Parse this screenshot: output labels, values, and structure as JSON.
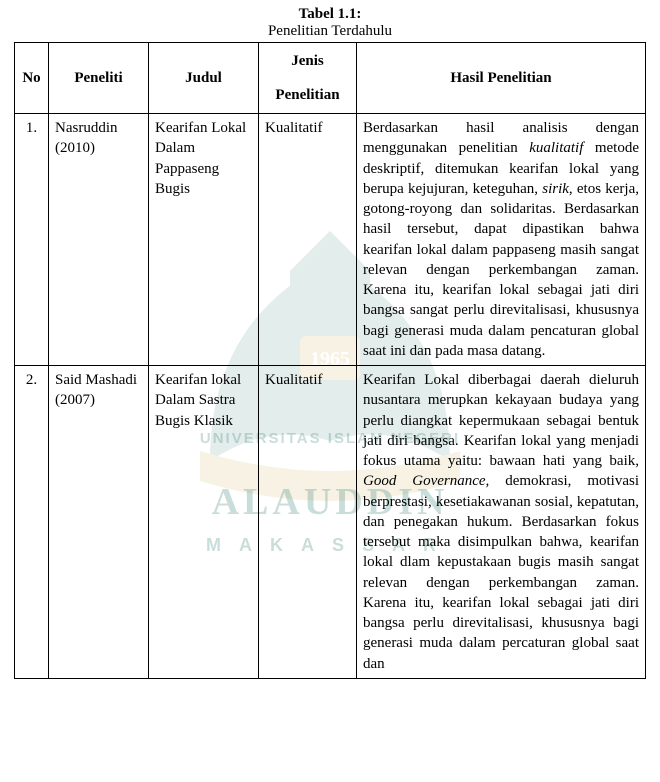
{
  "caption": {
    "title": "Tabel 1.1:",
    "subtitle": "Penelitian Terdahulu"
  },
  "headers": {
    "no": "No",
    "peneliti": "Peneliti",
    "judul": "Judul",
    "jenis_line1": "Jenis",
    "jenis_line2": "Penelitian",
    "hasil": "Hasil Penelitian"
  },
  "rows": [
    {
      "no": "1.",
      "peneliti": "Nasruddin (2010)",
      "judul": "Kearifan Lokal Dalam Pappaseng Bugis",
      "jenis": "Kualitatif",
      "hasil_html": "Berdasarkan hasil analisis dengan menggunakan penelitian <span class=\"it\">kualitatif</span> metode deskriptif, ditemukan kearifan lokal yang berupa kejujuran, keteguhan, <span class=\"it\">sirik</span>, etos kerja, gotong-royong dan solidaritas. Berdasarkan hasil tersebut, dapat dipastikan bahwa kearifan lokal dalam pappaseng masih sangat relevan dengan perkembangan zaman. Karena itu, kearifan lokal sebagai jati diri bangsa sangat perlu direvitalisasi, khususnya bagi generasi muda dalam pencaturan global saat ini dan pada masa datang."
    },
    {
      "no": "2.",
      "peneliti": "Said Mashadi (2007)",
      "judul": "Kearifan lokal Dalam Sastra Bugis Klasik",
      "jenis": "Kualitatif",
      "hasil_html": "Kearifan Lokal diberbagai daerah dieluruh nusantara merupkan kekayaan budaya yang perlu diangkat kepermukaan sebagai bentuk jati diri bangsa. Kearifan lokal yang menjadi fokus utama yaitu: bawaan hati yang baik, <span class=\"it\">Good Governance,</span> demokrasi, motivasi berprestasi, kesetiakawanan sosial, kepatutan, dan penegakan hukum. Berdasarkan fokus tersebut maka disimpulkan bahwa, kearifan lokal dlam kepustakaan bugis masih sangat relevan dengan perkembangan zaman. Karena itu, kearifan lokal sebagai jati diri bangsa perlu direvitalisasi, khususnya bagi generasi muda dalam percaturan global saat dan"
    }
  ],
  "watermark": {
    "univ": "UNIVERSITAS ISLAM NEGERI",
    "name": "ALAUDDIN",
    "city": "MAKASSAR",
    "logo_year": "1965",
    "colors": {
      "green": "#2e7a6f",
      "gold": "#c9a436"
    }
  }
}
